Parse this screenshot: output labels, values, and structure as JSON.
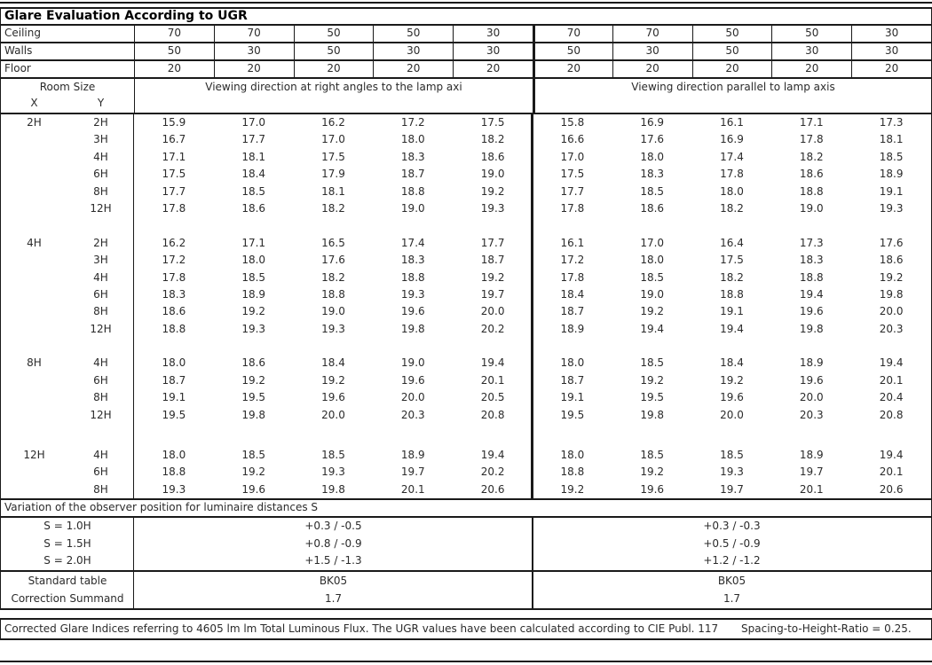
{
  "title": "Glare Evaluation According to UGR",
  "colors": {
    "ink": "#1a1a1a",
    "background": "#ffffff"
  },
  "surface_rows": [
    {
      "label": "Ceiling",
      "values": [
        "70",
        "70",
        "50",
        "50",
        "30",
        "70",
        "70",
        "50",
        "50",
        "30"
      ]
    },
    {
      "label": "Walls",
      "values": [
        "50",
        "30",
        "50",
        "30",
        "30",
        "50",
        "30",
        "50",
        "30",
        "30"
      ]
    },
    {
      "label": "Floor",
      "values": [
        "20",
        "20",
        "20",
        "20",
        "20",
        "20",
        "20",
        "20",
        "20",
        "20"
      ]
    }
  ],
  "header": {
    "room_size": "Room Size",
    "x": "X",
    "y": "Y",
    "left_direction": "Viewing direction at right angles to the lamp axi",
    "right_direction": "Viewing direction parallel to lamp axis"
  },
  "ugr_blocks": [
    {
      "x": "2H",
      "rows": [
        {
          "y": "2H",
          "values": [
            "15.9",
            "17.0",
            "16.2",
            "17.2",
            "17.5",
            "15.8",
            "16.9",
            "16.1",
            "17.1",
            "17.3"
          ]
        },
        {
          "y": "3H",
          "values": [
            "16.7",
            "17.7",
            "17.0",
            "18.0",
            "18.2",
            "16.6",
            "17.6",
            "16.9",
            "17.8",
            "18.1"
          ]
        },
        {
          "y": "4H",
          "values": [
            "17.1",
            "18.1",
            "17.5",
            "18.3",
            "18.6",
            "17.0",
            "18.0",
            "17.4",
            "18.2",
            "18.5"
          ]
        },
        {
          "y": "6H",
          "values": [
            "17.5",
            "18.4",
            "17.9",
            "18.7",
            "19.0",
            "17.5",
            "18.3",
            "17.8",
            "18.6",
            "18.9"
          ]
        },
        {
          "y": "8H",
          "values": [
            "17.7",
            "18.5",
            "18.1",
            "18.8",
            "19.2",
            "17.7",
            "18.5",
            "18.0",
            "18.8",
            "19.1"
          ]
        },
        {
          "y": "12H",
          "values": [
            "17.8",
            "18.6",
            "18.2",
            "19.0",
            "19.3",
            "17.8",
            "18.6",
            "18.2",
            "19.0",
            "19.3"
          ]
        }
      ]
    },
    {
      "x": "4H",
      "rows": [
        {
          "y": "2H",
          "values": [
            "16.2",
            "17.1",
            "16.5",
            "17.4",
            "17.7",
            "16.1",
            "17.0",
            "16.4",
            "17.3",
            "17.6"
          ]
        },
        {
          "y": "3H",
          "values": [
            "17.2",
            "18.0",
            "17.6",
            "18.3",
            "18.7",
            "17.2",
            "18.0",
            "17.5",
            "18.3",
            "18.6"
          ]
        },
        {
          "y": "4H",
          "values": [
            "17.8",
            "18.5",
            "18.2",
            "18.8",
            "19.2",
            "17.8",
            "18.5",
            "18.2",
            "18.8",
            "19.2"
          ]
        },
        {
          "y": "6H",
          "values": [
            "18.3",
            "18.9",
            "18.8",
            "19.3",
            "19.7",
            "18.4",
            "19.0",
            "18.8",
            "19.4",
            "19.8"
          ]
        },
        {
          "y": "8H",
          "values": [
            "18.6",
            "19.2",
            "19.0",
            "19.6",
            "20.0",
            "18.7",
            "19.2",
            "19.1",
            "19.6",
            "20.0"
          ]
        },
        {
          "y": "12H",
          "values": [
            "18.8",
            "19.3",
            "19.3",
            "19.8",
            "20.2",
            "18.9",
            "19.4",
            "19.4",
            "19.8",
            "20.3"
          ]
        }
      ]
    },
    {
      "x": "8H",
      "rows": [
        {
          "y": "4H",
          "values": [
            "18.0",
            "18.6",
            "18.4",
            "19.0",
            "19.4",
            "18.0",
            "18.5",
            "18.4",
            "18.9",
            "19.4"
          ]
        },
        {
          "y": "6H",
          "values": [
            "18.7",
            "19.2",
            "19.2",
            "19.6",
            "20.1",
            "18.7",
            "19.2",
            "19.2",
            "19.6",
            "20.1"
          ]
        },
        {
          "y": "8H",
          "values": [
            "19.1",
            "19.5",
            "19.6",
            "20.0",
            "20.5",
            "19.1",
            "19.5",
            "19.6",
            "20.0",
            "20.4"
          ]
        },
        {
          "y": "12H",
          "values": [
            "19.5",
            "19.8",
            "20.0",
            "20.3",
            "20.8",
            "19.5",
            "19.8",
            "20.0",
            "20.3",
            "20.8"
          ]
        }
      ]
    },
    {
      "x": "12H",
      "rows": [
        {
          "y": "4H",
          "values": [
            "18.0",
            "18.5",
            "18.5",
            "18.9",
            "19.4",
            "18.0",
            "18.5",
            "18.5",
            "18.9",
            "19.4"
          ]
        },
        {
          "y": "6H",
          "values": [
            "18.8",
            "19.2",
            "19.3",
            "19.7",
            "20.2",
            "18.8",
            "19.2",
            "19.3",
            "19.7",
            "20.1"
          ]
        },
        {
          "y": "8H",
          "values": [
            "19.3",
            "19.6",
            "19.8",
            "20.1",
            "20.6",
            "19.2",
            "19.6",
            "19.7",
            "20.1",
            "20.6"
          ]
        }
      ]
    }
  ],
  "variation": {
    "title": "Variation of the observer position for luminaire distances S",
    "rows": [
      {
        "label": "S = 1.0H",
        "left": "+0.3 / -0.5",
        "right": "+0.3 / -0.3"
      },
      {
        "label": "S = 1.5H",
        "left": "+0.8 / -0.9",
        "right": "+0.5 / -0.9"
      },
      {
        "label": "S = 2.0H",
        "left": "+1.5 / -1.3",
        "right": "+1.2 / -1.2"
      }
    ]
  },
  "summary_rows": [
    {
      "label": "Standard table",
      "left": "BK05",
      "right": "BK05"
    },
    {
      "label": "Correction Summand",
      "left": "1.7",
      "right": "1.7"
    }
  ],
  "footer": {
    "main_text": "Corrected Glare Indices referring to 4605 lm lm Total Luminous Flux. The UGR values have been calculated according to CIE Publ. 117",
    "ratio_text": "Spacing-to-Height-Ratio = 0.25."
  }
}
